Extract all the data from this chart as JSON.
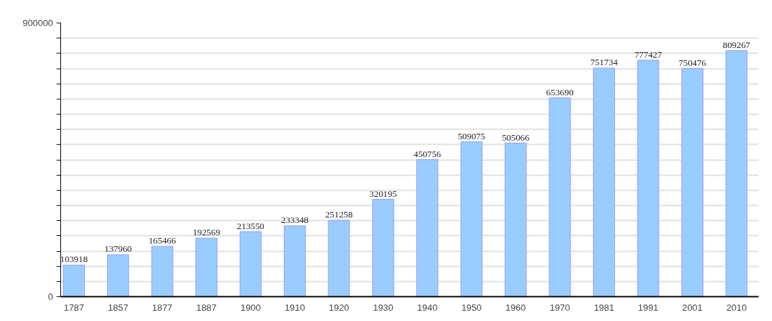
{
  "chart_data": {
    "type": "bar",
    "categories": [
      "1787",
      "1857",
      "1877",
      "1887",
      "1900",
      "1910",
      "1920",
      "1930",
      "1940",
      "1950",
      "1960",
      "1970",
      "1981",
      "1991",
      "2001",
      "2010"
    ],
    "values": [
      103918,
      137960,
      165466,
      192569,
      213550,
      233348,
      251258,
      320195,
      450756,
      509075,
      505066,
      653690,
      751734,
      777427,
      750476,
      809267
    ],
    "color": "#99ccff",
    "ylim": [
      0,
      900000
    ],
    "yticks": [
      0,
      {
        "value": 50000,
        "label": null
      },
      {
        "value": 100000,
        "label": null
      },
      {
        "value": 150000,
        "label": null
      },
      {
        "value": 200000,
        "label": null
      },
      {
        "value": 250000,
        "label": null
      },
      {
        "value": 300000,
        "label": null
      },
      {
        "value": 350000,
        "label": null
      },
      {
        "value": 400000,
        "label": null
      },
      {
        "value": 450000,
        "label": null
      },
      {
        "value": 500000,
        "label": null
      },
      {
        "value": 550000,
        "label": null
      },
      {
        "value": 600000,
        "label": null
      },
      {
        "value": 650000,
        "label": null
      },
      {
        "value": 700000,
        "label": null
      },
      {
        "value": 750000,
        "label": null
      },
      {
        "value": 800000,
        "label": null
      },
      {
        "value": 850000,
        "label": null
      },
      900000
    ],
    "grid": "y",
    "data_labels": true
  }
}
